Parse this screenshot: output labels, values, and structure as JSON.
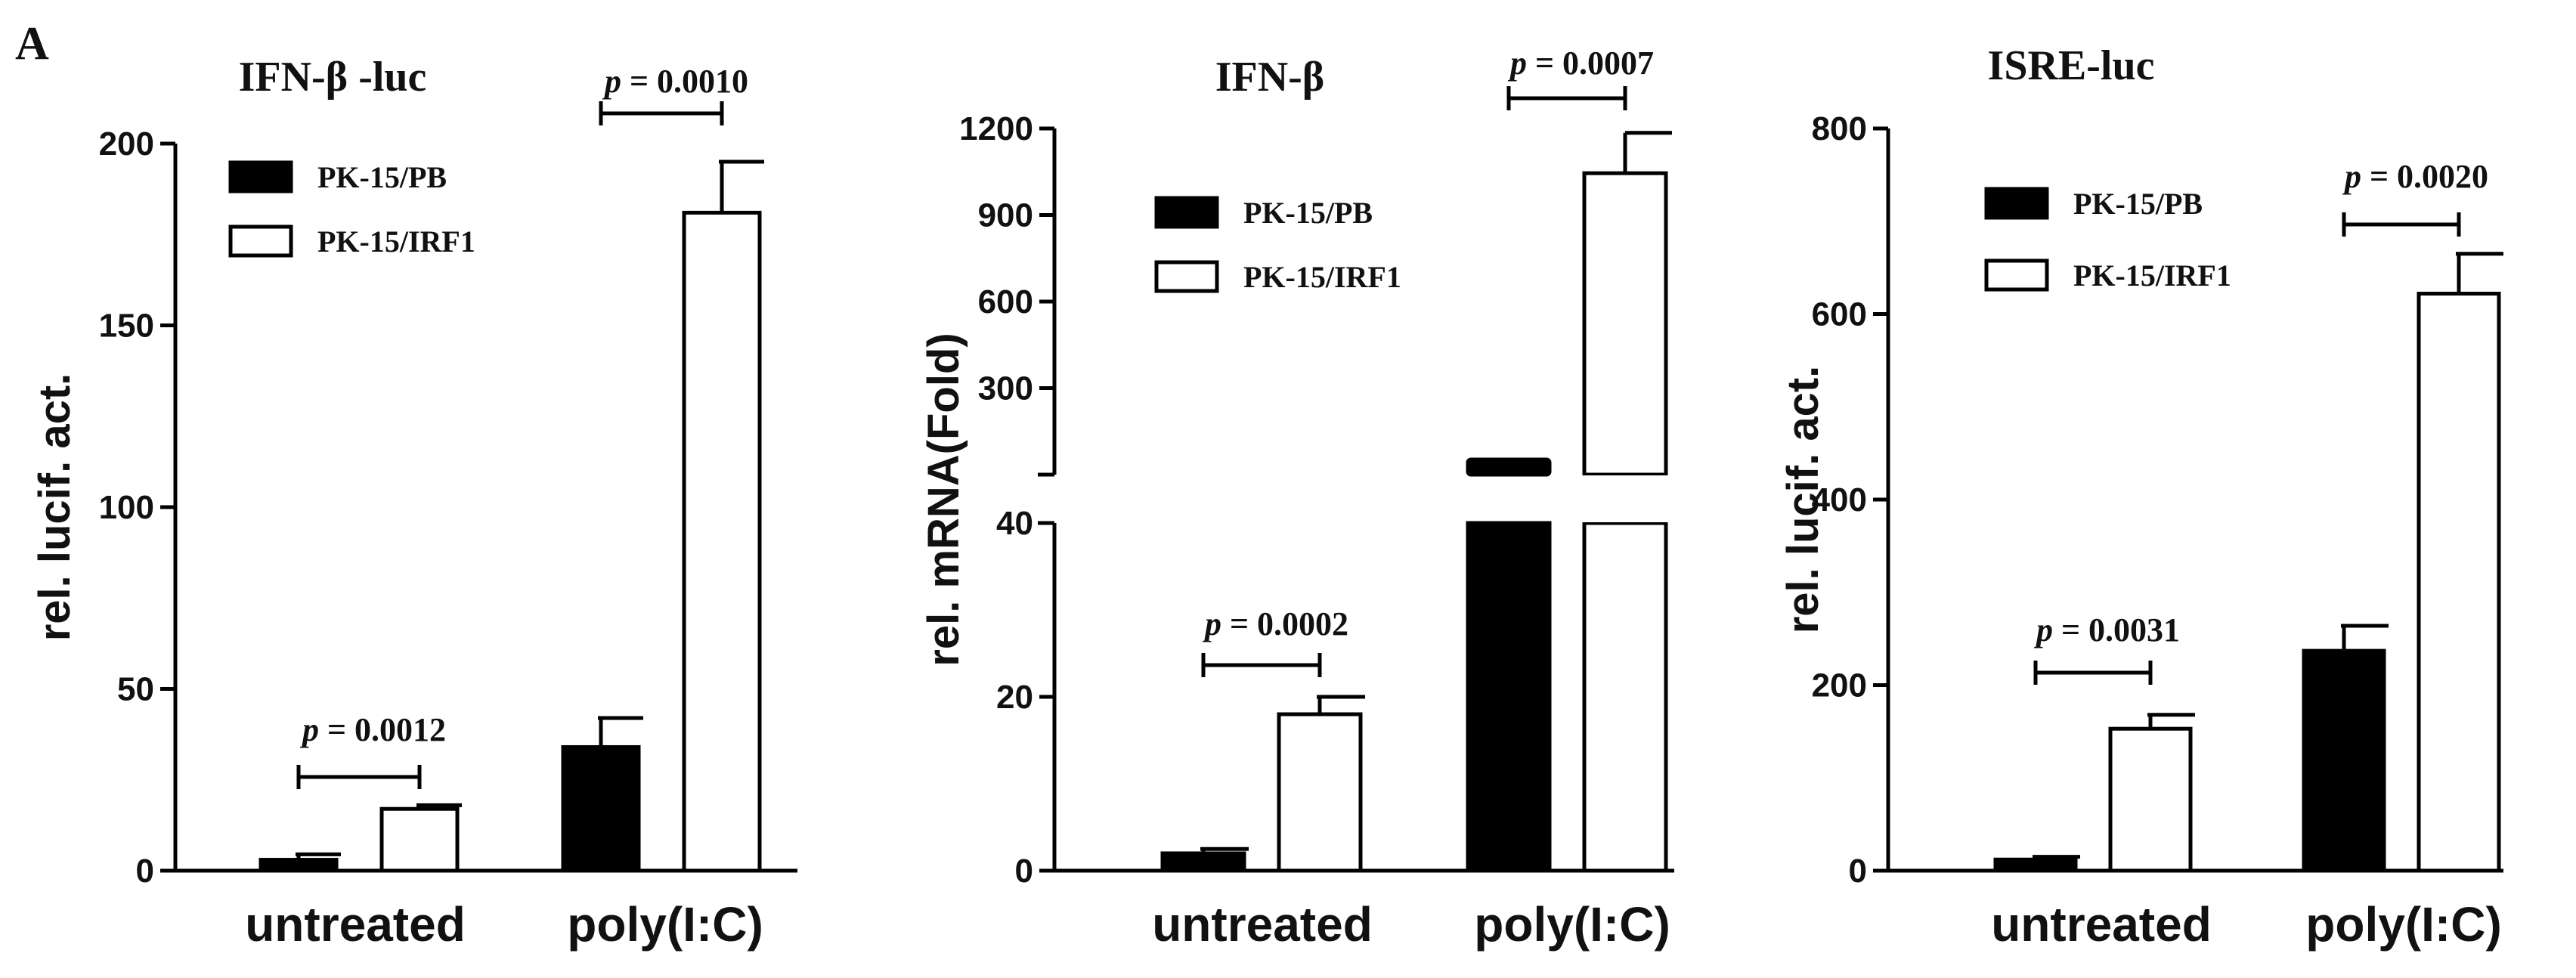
{
  "panel_label": "A",
  "colors": {
    "black_bar": "#000000",
    "white_bar": "#ffffff",
    "stroke": "#000000"
  },
  "chart_data": [
    {
      "type": "bar",
      "title": "IFN-β -luc",
      "ylabel": "rel. lucif. act.",
      "xlabel": "",
      "categories": [
        "untreated",
        "poly(I:C)"
      ],
      "ylim": [
        0,
        200
      ],
      "yticks": [
        "0",
        "50",
        "100",
        "150",
        "200"
      ],
      "series": [
        {
          "name": "PK-15/PB",
          "fill": "black",
          "values": [
            3,
            34
          ],
          "errors": [
            1.5,
            8
          ]
        },
        {
          "name": "PK-15/IRF1",
          "fill": "white",
          "values": [
            17,
            181
          ],
          "errors": [
            1,
            14
          ]
        }
      ],
      "pvalues": [
        {
          "group": 0,
          "p_label": "p",
          "text": "= 0.0012"
        },
        {
          "group": 1,
          "p_label": "p",
          "text": "= 0.0010"
        }
      ],
      "legend_position": "top-left"
    },
    {
      "type": "bar",
      "title": "IFN-β",
      "ylabel": "rel. mRNA(Fold)",
      "xlabel": "",
      "categories": [
        "untreated",
        "poly(I:C)"
      ],
      "broken_axis": true,
      "ylim_lower": [
        0,
        40
      ],
      "ylim_upper": [
        0,
        1200
      ],
      "yticks_lower": [
        "0",
        "20",
        "40"
      ],
      "yticks_upper": [
        "300",
        "600",
        "900",
        "1200"
      ],
      "series": [
        {
          "name": "PK-15/PB",
          "fill": "black",
          "values": [
            2,
            55
          ],
          "errors": [
            0.5,
            5
          ]
        },
        {
          "name": "PK-15/IRF1",
          "fill": "white",
          "values": [
            18,
            1045
          ],
          "errors": [
            2,
            140
          ]
        }
      ],
      "pvalues": [
        {
          "group": 0,
          "p_label": "p",
          "text": "= 0.0002"
        },
        {
          "group": 1,
          "p_label": "p",
          "text": "= 0.0007"
        }
      ],
      "legend_position": "top-left"
    },
    {
      "type": "bar",
      "title": "ISRE-luc",
      "ylabel": "rel. lucif. act.",
      "xlabel": "",
      "categories": [
        "untreated",
        "poly(I:C)"
      ],
      "ylim": [
        0,
        800
      ],
      "yticks": [
        "0",
        "200",
        "400",
        "600",
        "800"
      ],
      "series": [
        {
          "name": "PK-15/PB",
          "fill": "black",
          "values": [
            12,
            237
          ],
          "errors": [
            3,
            27
          ]
        },
        {
          "name": "PK-15/IRF1",
          "fill": "white",
          "values": [
            153,
            622
          ],
          "errors": [
            15,
            43
          ]
        }
      ],
      "pvalues": [
        {
          "group": 0,
          "p_label": "p",
          "text": "= 0.0031"
        },
        {
          "group": 1,
          "p_label": "p",
          "text": "= 0.0020"
        }
      ],
      "legend_position": "top-left"
    }
  ]
}
